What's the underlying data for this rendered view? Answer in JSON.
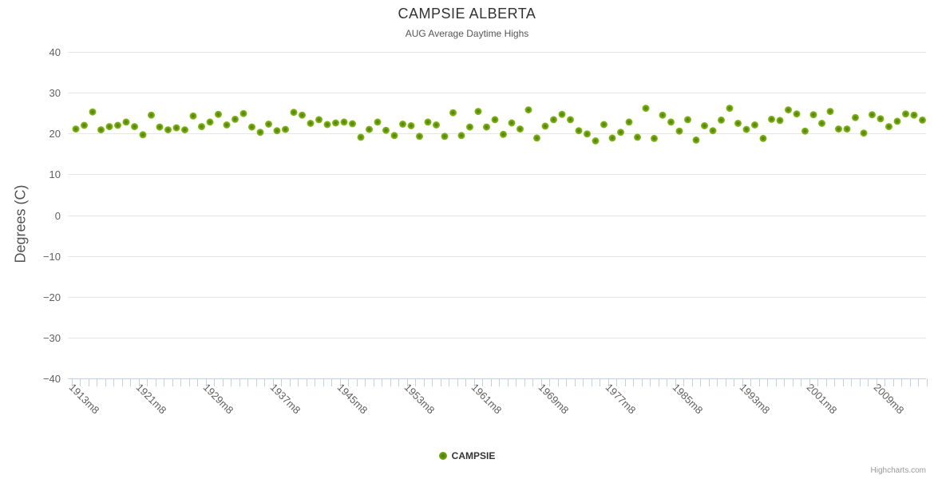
{
  "chart": {
    "title": "CAMPSIE ALBERTA",
    "subtitle": "AUG Average Daytime Highs",
    "y_axis_title": "Degrees (C)"
  },
  "legend": {
    "series_label": "CAMPSIE"
  },
  "credits": {
    "label": "Highcharts.com"
  },
  "colors": {
    "marker_core": "#4a7a06",
    "marker_mid": "#6d9c12",
    "marker_edge": "#8bc21e",
    "grid_line": "#e6e6e6",
    "axis_line": "#c0d0e0",
    "tick_mark": "#c0d0e0",
    "axis_label": "#606060",
    "title_text": "#333333",
    "subtitle_text": "#555555",
    "credits_text": "#999999",
    "background": "#ffffff"
  },
  "chart_data": {
    "type": "scatter",
    "title": "CAMPSIE ALBERTA",
    "subtitle": "AUG Average Daytime Highs",
    "xlabel": "",
    "ylabel": "Degrees (C)",
    "ylim": [
      -40,
      40
    ],
    "y_ticks": [
      40,
      30,
      20,
      10,
      0,
      -10,
      -20,
      -30,
      -40
    ],
    "grid": "horizontal",
    "legend_position": "bottom-center",
    "x_label_interval": 8,
    "x_label_rotation": 45,
    "x_tick_labels": [
      "1913m8",
      "1921m8",
      "1929m8",
      "1937m8",
      "1945m8",
      "1953m8",
      "1961m8",
      "1969m8",
      "1977m8",
      "1985m8",
      "1993m8",
      "2001m8",
      "2009m8"
    ],
    "series": [
      {
        "name": "CAMPSIE",
        "marker": "circle",
        "color": "#8bc21e",
        "years": [
          1913,
          1914,
          1915,
          1916,
          1917,
          1918,
          1919,
          1920,
          1921,
          1922,
          1923,
          1924,
          1925,
          1926,
          1927,
          1928,
          1929,
          1930,
          1931,
          1932,
          1933,
          1934,
          1935,
          1936,
          1937,
          1938,
          1939,
          1940,
          1941,
          1942,
          1943,
          1944,
          1945,
          1946,
          1947,
          1948,
          1949,
          1950,
          1951,
          1952,
          1953,
          1954,
          1955,
          1956,
          1957,
          1958,
          1959,
          1960,
          1961,
          1962,
          1963,
          1964,
          1965,
          1966,
          1967,
          1968,
          1969,
          1970,
          1971,
          1972,
          1973,
          1974,
          1975,
          1976,
          1977,
          1978,
          1979,
          1980,
          1981,
          1982,
          1983,
          1984,
          1985,
          1986,
          1987,
          1988,
          1989,
          1990,
          1991,
          1992,
          1993,
          1994,
          1995,
          1996,
          1997,
          1998,
          1999,
          2000,
          2001,
          2002,
          2003,
          2004,
          2005,
          2006,
          2007,
          2008,
          2009,
          2010,
          2011,
          2012,
          2013,
          2014
        ],
        "values": [
          21.1,
          22.0,
          25.3,
          20.9,
          21.7,
          22.0,
          22.8,
          21.7,
          19.7,
          24.5,
          21.6,
          20.9,
          21.4,
          20.9,
          24.3,
          21.7,
          22.8,
          24.7,
          22.1,
          23.5,
          24.9,
          21.6,
          20.3,
          22.3,
          20.7,
          21.0,
          25.2,
          24.5,
          22.5,
          23.4,
          22.2,
          22.6,
          22.8,
          22.4,
          19.1,
          21.0,
          22.8,
          20.8,
          19.5,
          22.3,
          21.9,
          19.3,
          22.8,
          22.1,
          19.3,
          25.1,
          19.5,
          21.6,
          25.4,
          21.6,
          23.4,
          19.8,
          22.6,
          21.1,
          25.8,
          18.9,
          21.8,
          23.4,
          24.7,
          23.4,
          20.7,
          19.9,
          18.2,
          22.2,
          18.9,
          20.3,
          22.8,
          19.1,
          26.2,
          18.8,
          24.5,
          22.8,
          20.6,
          23.4,
          18.4,
          21.9,
          20.7,
          23.3,
          26.2,
          22.5,
          21.0,
          22.1,
          18.8,
          23.5,
          23.2,
          25.8,
          24.8,
          20.6,
          24.6,
          22.5,
          25.4,
          21.1,
          21.1,
          23.9,
          20.1,
          24.6,
          23.6,
          21.7,
          23.0,
          24.8,
          24.5,
          23.3
        ]
      }
    ]
  }
}
